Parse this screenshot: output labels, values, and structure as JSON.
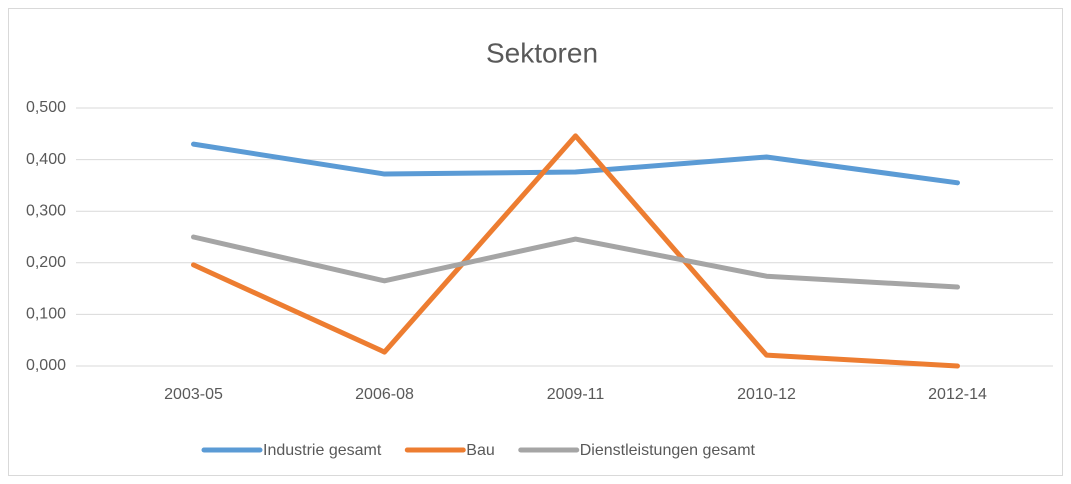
{
  "chart_data": {
    "type": "line",
    "title": "Sektoren",
    "categories": [
      "2003-05",
      "2006-08",
      "2009-11",
      "2010-12",
      "2012-14"
    ],
    "series": [
      {
        "name": "Industrie gesamt",
        "color": "#5b9bd5",
        "values": [
          0.43,
          0.372,
          0.376,
          0.405,
          0.355
        ]
      },
      {
        "name": "Bau",
        "color": "#ed7d31",
        "values": [
          0.196,
          0.027,
          0.446,
          0.021,
          0.0
        ]
      },
      {
        "name": "Dienstleistungen gesamt",
        "color": "#a5a5a5",
        "values": [
          0.25,
          0.165,
          0.246,
          0.174,
          0.153
        ]
      }
    ],
    "ylim": [
      0,
      0.5
    ],
    "yticks": [
      {
        "value": 0,
        "label": "0,000"
      },
      {
        "value": 0.1,
        "label": "0,100"
      },
      {
        "value": 0.2,
        "label": "0,200"
      },
      {
        "value": 0.3,
        "label": "0,300"
      },
      {
        "value": 0.4,
        "label": "0,400"
      },
      {
        "value": 0.5,
        "label": "0,500"
      }
    ],
    "grid": true,
    "legend": "bottom"
  }
}
